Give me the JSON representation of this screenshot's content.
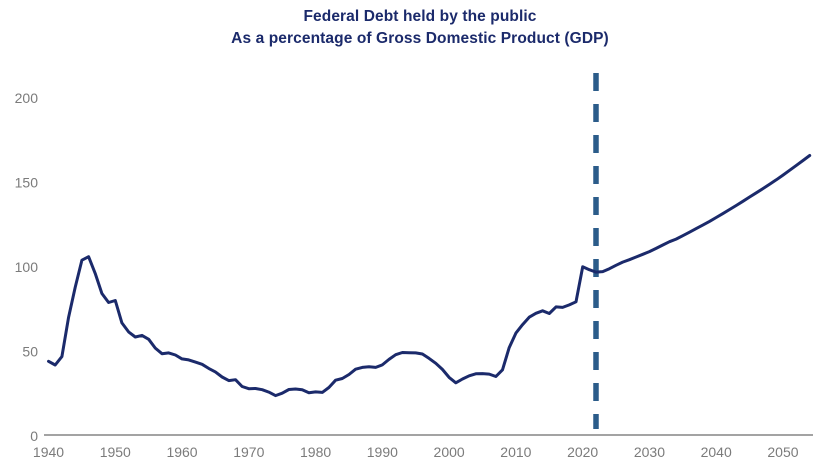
{
  "title": {
    "line1": "Federal Debt held by the public",
    "line2": "As a percentage of Gross Domestic Product (GDP)"
  },
  "colors": {
    "title": "#1b2a6b",
    "line": "#1b2a6b",
    "divider": "#2b5c8a",
    "axis": "#a3a3a3",
    "tick_label": "#7b7b7b",
    "background": "#ffffff"
  },
  "chart_data": {
    "type": "line",
    "title": "Federal Debt held by the public",
    "subtitle": "As a percentage of Gross Domestic Product (GDP)",
    "xlabel": "",
    "ylabel": "",
    "xlim": [
      1940,
      2054
    ],
    "ylim": [
      0,
      220
    ],
    "grid": false,
    "legend": "none",
    "yticks": [
      0,
      50,
      100,
      150,
      200
    ],
    "xticks": [
      1940,
      1950,
      1960,
      1970,
      1980,
      1990,
      2000,
      2010,
      2020,
      2030,
      2040,
      2050
    ],
    "projection_divider_year": 2022,
    "series": [
      {
        "name": "Debt held by the public (% of GDP)",
        "x": [
          1940,
          1941,
          1942,
          1943,
          1944,
          1945,
          1946,
          1947,
          1948,
          1949,
          1950,
          1951,
          1952,
          1953,
          1954,
          1955,
          1956,
          1957,
          1958,
          1959,
          1960,
          1961,
          1962,
          1963,
          1964,
          1965,
          1966,
          1967,
          1968,
          1969,
          1970,
          1971,
          1972,
          1973,
          1974,
          1975,
          1976,
          1977,
          1978,
          1979,
          1980,
          1981,
          1982,
          1983,
          1984,
          1985,
          1986,
          1987,
          1988,
          1989,
          1990,
          1991,
          1992,
          1993,
          1994,
          1995,
          1996,
          1997,
          1998,
          1999,
          2000,
          2001,
          2002,
          2003,
          2004,
          2005,
          2006,
          2007,
          2008,
          2009,
          2010,
          2011,
          2012,
          2013,
          2014,
          2015,
          2016,
          2017,
          2018,
          2019,
          2020,
          2021,
          2022,
          2023,
          2024,
          2025,
          2026,
          2027,
          2028,
          2029,
          2030,
          2031,
          2032,
          2033,
          2034,
          2035,
          2036,
          2037,
          2038,
          2039,
          2040,
          2041,
          2042,
          2043,
          2044,
          2045,
          2046,
          2047,
          2048,
          2049,
          2050,
          2051,
          2052,
          2053,
          2054
        ],
        "values": [
          44.2,
          42.0,
          47.0,
          70.0,
          88.0,
          104.0,
          106.1,
          96.2,
          84.3,
          79.0,
          80.2,
          66.9,
          61.6,
          58.6,
          59.5,
          57.2,
          52.0,
          48.7,
          49.2,
          47.9,
          45.6,
          45.0,
          43.7,
          42.4,
          40.0,
          37.9,
          34.9,
          32.8,
          33.3,
          29.3,
          28.0,
          28.1,
          27.4,
          26.0,
          23.9,
          25.3,
          27.5,
          27.8,
          27.4,
          25.6,
          26.1,
          25.8,
          28.7,
          33.0,
          34.0,
          36.4,
          39.5,
          40.6,
          41.0,
          40.6,
          42.1,
          45.3,
          48.1,
          49.4,
          49.3,
          49.2,
          48.5,
          45.9,
          43.0,
          39.4,
          34.7,
          31.5,
          33.7,
          35.6,
          36.8,
          36.9,
          36.6,
          35.2,
          39.2,
          52.3,
          60.9,
          65.9,
          70.3,
          72.6,
          74.1,
          72.5,
          76.4,
          76.1,
          77.6,
          79.4,
          100.1,
          98.4,
          97.0,
          97.3,
          99.0,
          101.0,
          102.9,
          104.3,
          105.9,
          107.5,
          109.1,
          111.0,
          113.0,
          115.0,
          116.5,
          118.5,
          120.6,
          122.7,
          124.8,
          127.0,
          129.3,
          131.6,
          134.0,
          136.4,
          138.9,
          141.4,
          143.9,
          146.4,
          149.0,
          151.6,
          154.4,
          157.2,
          160.1,
          163.0,
          166.0
        ]
      }
    ]
  }
}
